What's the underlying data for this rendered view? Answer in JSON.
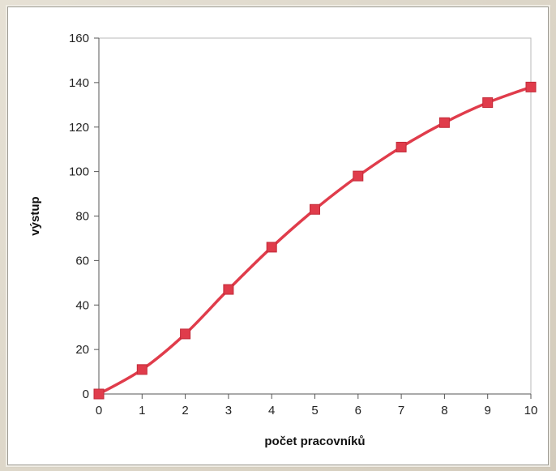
{
  "chart_data": {
    "type": "line",
    "title": "",
    "xlabel": "počet pracovníků",
    "ylabel": "výstup",
    "x": [
      0,
      1,
      2,
      3,
      4,
      5,
      6,
      7,
      8,
      9,
      10
    ],
    "series": [
      {
        "values": [
          0,
          11,
          27,
          47,
          66,
          83,
          98,
          111,
          122,
          131,
          138
        ],
        "color": "#e03c4b"
      }
    ],
    "xlim": [
      0,
      10
    ],
    "ylim": [
      0,
      160
    ],
    "x_ticks": [
      0,
      1,
      2,
      3,
      4,
      5,
      6,
      7,
      8,
      9,
      10
    ],
    "y_ticks": [
      0,
      20,
      40,
      60,
      80,
      100,
      120,
      140,
      160
    ],
    "grid": false,
    "legend": "none",
    "marker": "square"
  }
}
